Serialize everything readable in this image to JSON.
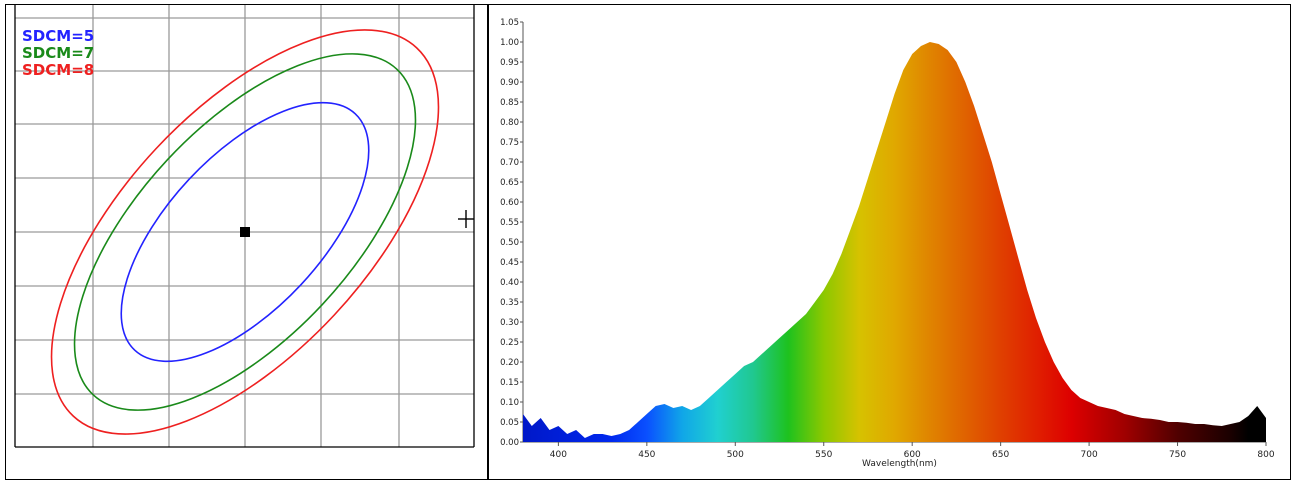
{
  "chart_data": [
    {
      "type": "line",
      "title": "",
      "grid": true,
      "legend_position": "top-left",
      "series": [
        {
          "name": "SDCM=5",
          "color": "#2323ff",
          "ellipse": {
            "cx": 0,
            "cy": 0,
            "rx": 3.05,
            "ry": 1.45,
            "angle_deg": -47
          }
        },
        {
          "name": "SDCM=7",
          "color": "#1a8a1a",
          "ellipse": {
            "cx": 0,
            "cy": 0,
            "rx": 4.2,
            "ry": 2.0,
            "angle_deg": -47
          }
        },
        {
          "name": "SDCM=8",
          "color": "#ee2020",
          "ellipse": {
            "cx": 0,
            "cy": 0,
            "rx": 4.75,
            "ry": 2.3,
            "angle_deg": -47
          }
        }
      ],
      "center_point": {
        "x": 0,
        "y": 0
      },
      "grid_cells": {
        "x": [
          -3,
          3
        ],
        "y": [
          -4,
          4
        ]
      }
    },
    {
      "type": "area",
      "xlabel": "Wavelength(nm)",
      "ylabel": "",
      "xlim": [
        380,
        800
      ],
      "ylim": [
        0,
        1.05
      ],
      "x_ticks": [
        "400",
        "450",
        "500",
        "550",
        "600",
        "650",
        "700",
        "750",
        "800"
      ],
      "y_ticks": [
        "0.00",
        "0.05",
        "0.10",
        "0.15",
        "0.20",
        "0.25",
        "0.30",
        "0.35",
        "0.40",
        "0.45",
        "0.50",
        "0.55",
        "0.60",
        "0.65",
        "0.70",
        "0.75",
        "0.80",
        "0.85",
        "0.90",
        "0.95",
        "1.00",
        "1.05"
      ],
      "x": [
        380,
        385,
        390,
        395,
        400,
        405,
        410,
        415,
        420,
        425,
        430,
        435,
        440,
        445,
        450,
        455,
        460,
        465,
        470,
        475,
        480,
        485,
        490,
        495,
        500,
        505,
        510,
        515,
        520,
        525,
        530,
        535,
        540,
        545,
        550,
        555,
        560,
        565,
        570,
        575,
        580,
        585,
        590,
        595,
        600,
        605,
        610,
        615,
        620,
        625,
        630,
        635,
        640,
        645,
        650,
        655,
        660,
        665,
        670,
        675,
        680,
        685,
        690,
        695,
        700,
        705,
        710,
        715,
        720,
        725,
        730,
        735,
        740,
        745,
        750,
        755,
        760,
        765,
        770,
        775,
        780,
        785,
        790,
        795,
        800
      ],
      "values": [
        0.07,
        0.04,
        0.06,
        0.03,
        0.04,
        0.02,
        0.03,
        0.01,
        0.02,
        0.02,
        0.015,
        0.02,
        0.03,
        0.05,
        0.07,
        0.09,
        0.095,
        0.085,
        0.09,
        0.08,
        0.09,
        0.11,
        0.13,
        0.15,
        0.17,
        0.19,
        0.2,
        0.22,
        0.24,
        0.26,
        0.28,
        0.3,
        0.32,
        0.35,
        0.38,
        0.42,
        0.47,
        0.53,
        0.59,
        0.66,
        0.73,
        0.8,
        0.87,
        0.93,
        0.97,
        0.99,
        1.0,
        0.995,
        0.98,
        0.95,
        0.9,
        0.84,
        0.77,
        0.7,
        0.62,
        0.54,
        0.46,
        0.38,
        0.31,
        0.25,
        0.2,
        0.16,
        0.13,
        0.11,
        0.1,
        0.09,
        0.085,
        0.08,
        0.07,
        0.065,
        0.06,
        0.058,
        0.055,
        0.05,
        0.05,
        0.048,
        0.045,
        0.045,
        0.042,
        0.04,
        0.045,
        0.05,
        0.065,
        0.09,
        0.06
      ]
    }
  ]
}
